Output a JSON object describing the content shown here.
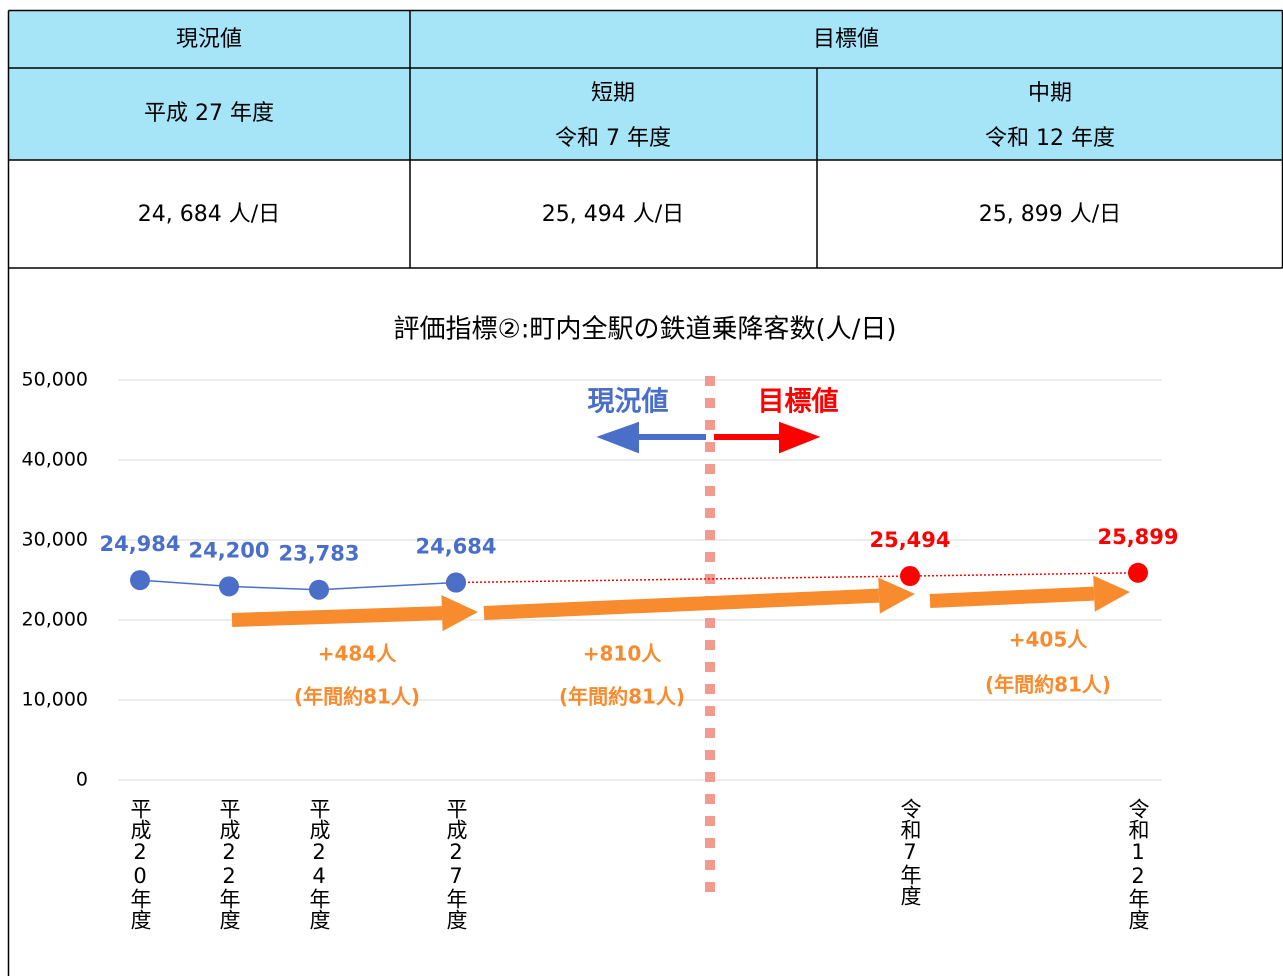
{
  "table": {
    "headers": [
      "現況値",
      "目標値"
    ],
    "periods": [
      [
        "平成 27 年度"
      ],
      [
        "短期",
        "令和 7 年度"
      ],
      [
        "中期",
        "令和 12 年度"
      ]
    ],
    "values": [
      "24, 684 人/日",
      "25, 494 人/日",
      "25, 899 人/日"
    ]
  },
  "chart_data": {
    "type": "line",
    "title": "評価指標②:町内全駅の鉄道乗降客数(人/日)",
    "categories": [
      "平成20年度",
      "平成22年度",
      "平成24年度",
      "平成27年度",
      "令和7年度",
      "令和12年度"
    ],
    "series": [
      {
        "name": "現況値",
        "color": "#4a6fc9",
        "values": [
          24984,
          24200,
          23783,
          24684,
          null,
          null
        ],
        "value_labels": [
          "24,984",
          "24,200",
          "23,783",
          "24,684",
          null,
          null
        ]
      },
      {
        "name": "目標値",
        "color": "#ff0000",
        "values": [
          null,
          null,
          null,
          24684,
          25494,
          25899
        ],
        "value_labels": [
          null,
          null,
          null,
          null,
          "25,494",
          "25,899"
        ]
      }
    ],
    "ylim": [
      0,
      50000
    ],
    "yticks": [
      0,
      {
        "value": 10000,
        "label": "10,000"
      },
      {
        "value": 20000,
        "label": "20,000"
      },
      {
        "value": 30000,
        "label": "30,000"
      },
      {
        "value": 40000,
        "label": "40,000"
      },
      {
        "value": 50000,
        "label": "50,000"
      }
    ],
    "grid": true,
    "annotations": [
      "+484人",
      "(年間約81人)",
      "+810人",
      "(年間約81人)",
      "+405人",
      "(年間約81人)"
    ]
  }
}
